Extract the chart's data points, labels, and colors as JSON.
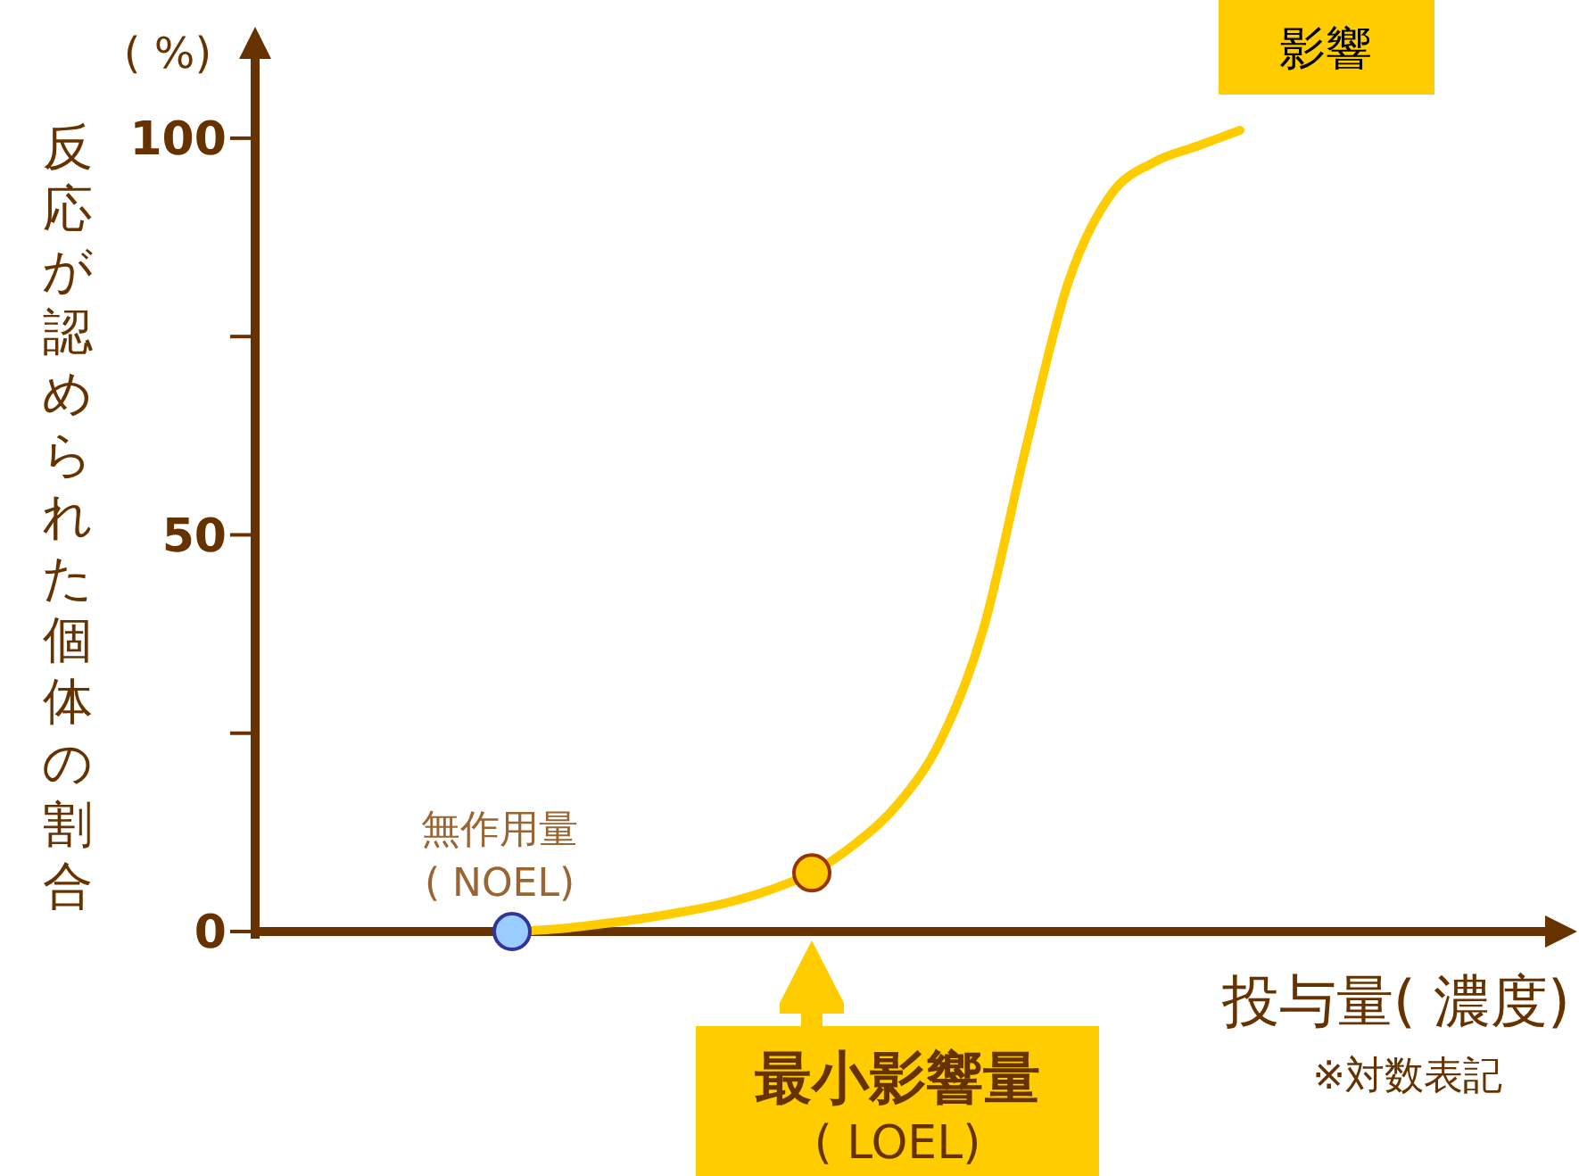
{
  "chart_data": {
    "type": "line",
    "xlabel": "投与量( 濃度)",
    "ylabel": "反応が認められた個体の割合",
    "categories": [
      null,
      null,
      null,
      null,
      null,
      null,
      null,
      null,
      null,
      null,
      null,
      null,
      null,
      null,
      null,
      null,
      null,
      null,
      null,
      null,
      null,
      null,
      null,
      null,
      null,
      null,
      null,
      null,
      null,
      null,
      null
    ],
    "series": [
      {
        "color": "#ffcc00",
        "marker": "none",
        "values": [
          null,
          null,
          null,
          null,
          null,
          null,
          0,
          0.3,
          0.9,
          1.6,
          2.5,
          3.6,
          5.2,
          7.4,
          11,
          16,
          24,
          38,
          61,
          82,
          93,
          97,
          99,
          101,
          null,
          null,
          null,
          null,
          null,
          null,
          null
        ]
      },
      {
        "type": "scatter",
        "marker": "circle",
        "colors": [
          null,
          null,
          null,
          null,
          null,
          null,
          "#99ccff",
          null,
          null,
          null,
          null,
          null,
          null,
          "#ffcc00",
          null,
          null,
          null,
          null,
          null,
          null,
          null,
          null,
          null,
          null,
          null,
          null,
          null,
          null,
          null,
          null,
          null
        ],
        "values": [
          null,
          null,
          null,
          null,
          null,
          null,
          0,
          null,
          null,
          null,
          null,
          null,
          null,
          7.4,
          null,
          null,
          null,
          null,
          null,
          null,
          null,
          null,
          null,
          null,
          null,
          null,
          null,
          null,
          null,
          null,
          null
        ]
      }
    ],
    "ylim": [
      0,
      110
    ],
    "yticks": [
      0,
      {
        "value": 25,
        "label": null
      },
      50,
      {
        "value": 75,
        "label": null
      },
      100
    ],
    "grid": false,
    "annotations": [
      "( %)",
      "無作用量\n( NOEL)",
      "最小影響量\n( LOEL)",
      "影響",
      "※対数表記"
    ]
  }
}
